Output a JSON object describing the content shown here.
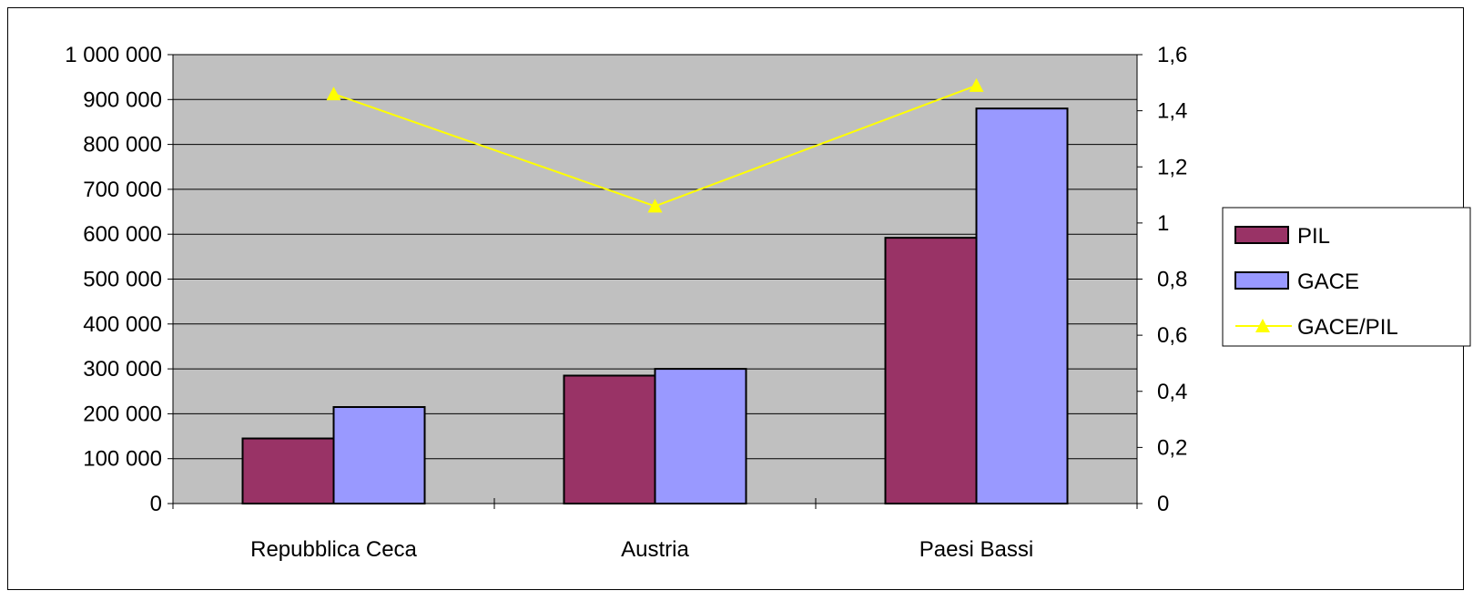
{
  "chart_data": {
    "type": "bar",
    "categories": [
      "Repubblica Ceca",
      "Austria",
      "Paesi Bassi"
    ],
    "series": [
      {
        "name": "PIL",
        "kind": "bar",
        "axis": "left",
        "color": "#993366",
        "values": [
          145000,
          285000,
          592000
        ]
      },
      {
        "name": "GACE",
        "kind": "bar",
        "axis": "left",
        "color": "#9999ff",
        "values": [
          215000,
          300000,
          880000
        ]
      },
      {
        "name": "GACE/PIL",
        "kind": "line",
        "axis": "right",
        "color": "#ffff00",
        "marker": "triangle",
        "values": [
          1.46,
          1.06,
          1.49
        ]
      }
    ],
    "y_left": {
      "lim": [
        0,
        1000000
      ],
      "ticks": [
        "0",
        "100 000",
        "200 000",
        "300 000",
        "400 000",
        "500 000",
        "600 000",
        "700 000",
        "800 000",
        "900 000",
        "1 000 000"
      ]
    },
    "y_right": {
      "lim": [
        0,
        1.6
      ],
      "ticks": [
        "0",
        "0,2",
        "0,4",
        "0,6",
        "0,8",
        "1",
        "1,2",
        "1,4",
        "1,6"
      ]
    },
    "title": "",
    "xlabel": "",
    "ylabel": "",
    "grid": true,
    "plot_background": "#c0c0c0",
    "legend": {
      "placement": "right",
      "entries": [
        {
          "label": "PIL",
          "marker": "rect",
          "color": "#993366"
        },
        {
          "label": "GACE",
          "marker": "rect",
          "color": "#9999ff"
        },
        {
          "label": "GACE/PIL",
          "marker": "line-triangle",
          "color": "#ffff00"
        }
      ]
    }
  }
}
